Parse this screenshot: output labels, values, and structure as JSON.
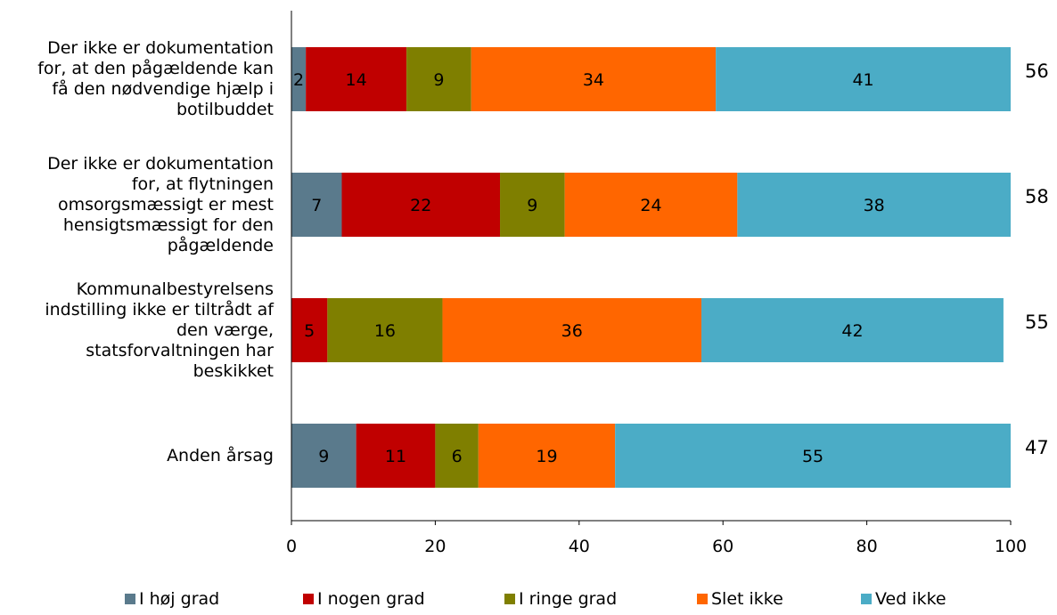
{
  "chart_data": {
    "type": "bar",
    "orientation": "horizontal",
    "stacked": true,
    "categories": [
      "Der ikke er dokumentation for, at den pågældende kan få den nødvendige hjælp i botilbuddet",
      "Der ikke er dokumentation for, at flytningen omsorgsmæssigt er mest hensigtsmæssigt for den pågældende",
      "Kommunalbestyrelsens indstilling ikke er tiltrådt af den værge, statsforvaltningen har beskikket",
      "Anden årsag"
    ],
    "category_lines": [
      [
        "Der ikke er dokumentation",
        "for, at den pågældende kan",
        "få den nødvendige hjælp i",
        "botilbuddet"
      ],
      [
        "Der ikke er dokumentation",
        "for, at flytningen",
        "omsorgsmæssigt er mest",
        "hensigtsmæssigt for den",
        "pågældende"
      ],
      [
        "Kommunalbestyrelsens",
        "indstilling ikke er tiltrådt af",
        "den værge,",
        "statsforvaltningen har",
        "beskikket"
      ],
      [
        "Anden årsag"
      ]
    ],
    "series": [
      {
        "name": "I høj grad",
        "color": "#5a7a8c",
        "values": [
          2,
          7,
          0,
          9
        ]
      },
      {
        "name": "I nogen grad",
        "color": "#c00000",
        "values": [
          14,
          22,
          5,
          11
        ]
      },
      {
        "name": "I ringe grad",
        "color": "#7f7f00",
        "values": [
          9,
          9,
          16,
          6
        ]
      },
      {
        "name": "Slet ikke",
        "color": "#ff6600",
        "values": [
          34,
          24,
          36,
          19
        ]
      },
      {
        "name": "Ved ikke",
        "color": "#4bacc6",
        "values": [
          41,
          38,
          42,
          55
        ]
      }
    ],
    "n_values": [
      56,
      58,
      55,
      47
    ],
    "xlim": [
      0,
      100
    ],
    "xticks": [
      0,
      20,
      40,
      60,
      80,
      100
    ],
    "grid": false,
    "legend_position": "bottom"
  }
}
